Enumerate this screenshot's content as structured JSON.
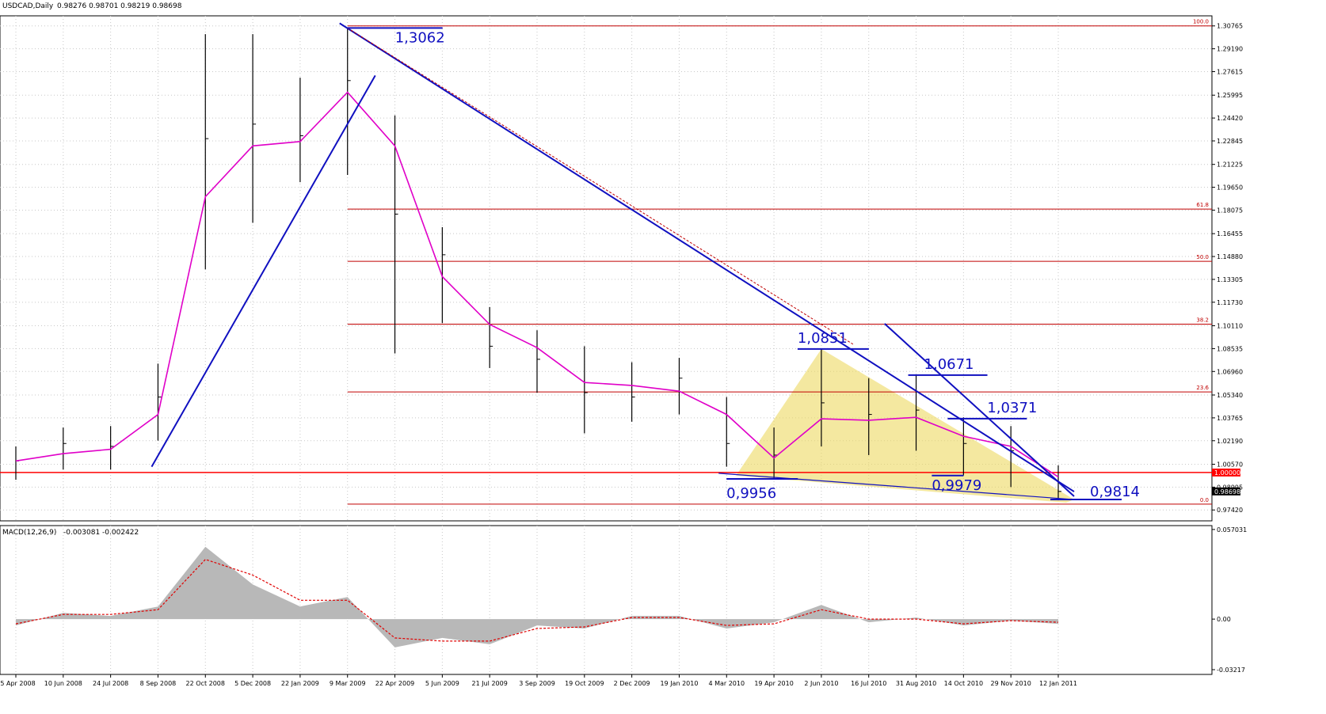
{
  "window": {
    "title": "USDCAD,Daily",
    "ohlc": "0.98276 0.98701 0.98219 0.98698"
  },
  "colors": {
    "background": "#ffffff",
    "grid": "#c8c8c8",
    "candle": "#000000",
    "ma": "#e000c8",
    "trendline": "#1010c0",
    "fibo": "#c00000",
    "triangle": "#ecd860",
    "macd_hist": "#b8b8b8",
    "macd_signal": "#e00000",
    "current_price_box": "#ffffff",
    "parity_box": "#ff0000"
  },
  "chart_data": [
    {
      "type": "line",
      "title": "USDCAD,Daily",
      "symbol": "USDCAD",
      "timeframe": "Daily",
      "ohlc_last": [
        0.98276,
        0.98701,
        0.98219,
        0.98698
      ],
      "ylim": [
        0.9667,
        1.3146
      ],
      "y_ticks": [
        "1.30765",
        "1.29190",
        "1.27615",
        "1.25995",
        "1.24420",
        "1.22845",
        "1.21225",
        "1.19650",
        "1.18075",
        "1.16455",
        "1.14880",
        "1.13305",
        "1.11730",
        "1.10110",
        "1.08535",
        "1.06960",
        "1.05340",
        "1.03765",
        "1.02190",
        "1.00570",
        "0.98995",
        "0.97420"
      ],
      "x_ticks": [
        "25 Apr 2008",
        "10 Jun 2008",
        "24 Jul 2008",
        "8 Sep 2008",
        "22 Oct 2008",
        "5 Dec 2008",
        "22 Jan 2009",
        "9 Mar 2009",
        "22 Apr 2009",
        "5 Jun 2009",
        "21 Jul 2009",
        "3 Sep 2009",
        "19 Oct 2009",
        "2 Dec 2009",
        "19 Jan 2010",
        "4 Mar 2010",
        "19 Apr 2010",
        "2 Jun 2010",
        "16 Jul 2010",
        "31 Aug 2010",
        "14 Oct 2010",
        "29 Nov 2010",
        "12 Jan 2011"
      ],
      "series": [
        {
          "style": "candles",
          "x": [
            "25 Apr 2008",
            "10 Jun 2008",
            "24 Jul 2008",
            "8 Sep 2008",
            "22 Oct 2008",
            "5 Dec 2008",
            "22 Jan 2009",
            "9 Mar 2009",
            "22 Apr 2009",
            "5 Jun 2009",
            "21 Jul 2009",
            "3 Sep 2009",
            "19 Oct 2009",
            "2 Dec 2009",
            "19 Jan 2010",
            "4 Mar 2010",
            "19 Apr 2010",
            "2 Jun 2010",
            "16 Jul 2010",
            "31 Aug 2010",
            "14 Oct 2010",
            "29 Nov 2010",
            "12 Jan 2011"
          ],
          "high": [
            1.018,
            1.031,
            1.032,
            1.075,
            1.302,
            1.302,
            1.272,
            1.306,
            1.246,
            1.169,
            1.114,
            1.098,
            1.087,
            1.076,
            1.079,
            1.052,
            1.031,
            1.085,
            1.065,
            1.067,
            1.038,
            1.032,
            1.005
          ],
          "low": [
            0.995,
            1.002,
            1.002,
            1.022,
            1.14,
            1.172,
            1.2,
            1.205,
            1.082,
            1.103,
            1.072,
            1.055,
            1.027,
            1.035,
            1.04,
            1.004,
            0.996,
            1.018,
            1.012,
            1.015,
            0.998,
            0.99,
            0.981
          ],
          "close": [
            1.008,
            1.02,
            1.018,
            1.052,
            1.23,
            1.24,
            1.232,
            1.27,
            1.178,
            1.15,
            1.087,
            1.078,
            1.055,
            1.052,
            1.065,
            1.02,
            1.012,
            1.048,
            1.04,
            1.043,
            1.02,
            1.015,
            0.987
          ]
        },
        {
          "style": "moving-average",
          "x": [
            "25 Apr 2008",
            "10 Jun 2008",
            "24 Jul 2008",
            "8 Sep 2008",
            "22 Oct 2008",
            "5 Dec 2008",
            "22 Jan 2009",
            "9 Mar 2009",
            "22 Apr 2009",
            "5 Jun 2009",
            "21 Jul 2009",
            "3 Sep 2009",
            "19 Oct 2009",
            "2 Dec 2009",
            "19 Jan 2010",
            "4 Mar 2010",
            "19 Apr 2010",
            "2 Jun 2010",
            "16 Jul 2010",
            "31 Aug 2010",
            "14 Oct 2010",
            "29 Nov 2010",
            "12 Jan 2011"
          ],
          "y": [
            1.008,
            1.013,
            1.016,
            1.04,
            1.19,
            1.225,
            1.228,
            1.262,
            1.225,
            1.135,
            1.102,
            1.086,
            1.062,
            1.06,
            1.056,
            1.04,
            1.01,
            1.037,
            1.036,
            1.038,
            1.025,
            1.018,
            0.997
          ]
        }
      ],
      "annotations": [
        {
          "text": "1,3062",
          "value": 1.3062
        },
        {
          "text": "1,0851",
          "value": 1.0851
        },
        {
          "text": "1,0671",
          "value": 1.0671
        },
        {
          "text": "1,0371",
          "value": 1.0371
        },
        {
          "text": "0,9979",
          "value": 0.9979
        },
        {
          "text": "0,9956",
          "value": 0.9956
        },
        {
          "text": "0,9814",
          "value": 0.9814
        }
      ],
      "fibo_levels": [
        {
          "label": "100.0",
          "value": 1.30765
        },
        {
          "label": "61.8",
          "value": 1.1815
        },
        {
          "label": "50.0",
          "value": 1.1455
        },
        {
          "label": "38.2",
          "value": 1.1022
        },
        {
          "label": "23.6",
          "value": 1.0555
        },
        {
          "label": "0.0",
          "value": 0.9782
        }
      ],
      "horizontal_line": {
        "label": "1.00000",
        "value": 1.0
      },
      "current_price": {
        "label": "0.98698",
        "value": 0.98698
      },
      "grid": true
    },
    {
      "type": "area",
      "title": "MACD(12,26,9) -0.003081 -0.002422",
      "indicator": "MACD(12,26,9)",
      "values_text": "-0.003081 -0.002422",
      "ylim": [
        -0.0352,
        0.0595
      ],
      "y_ticks": [
        "0.057031",
        "0.00",
        "-0.03217"
      ],
      "x": [
        "25 Apr 2008",
        "10 Jun 2008",
        "24 Jul 2008",
        "8 Sep 2008",
        "22 Oct 2008",
        "5 Dec 2008",
        "22 Jan 2009",
        "9 Mar 2009",
        "22 Apr 2009",
        "5 Jun 2009",
        "21 Jul 2009",
        "3 Sep 2009",
        "19 Oct 2009",
        "2 Dec 2009",
        "19 Jan 2010",
        "4 Mar 2010",
        "19 Apr 2010",
        "2 Jun 2010",
        "16 Jul 2010",
        "31 Aug 2010",
        "14 Oct 2010",
        "29 Nov 2010",
        "12 Jan 2011"
      ],
      "series": [
        {
          "name": "MACD",
          "style": "histogram",
          "values": [
            -0.004,
            0.004,
            0.002,
            0.008,
            0.046,
            0.022,
            0.008,
            0.014,
            -0.018,
            -0.012,
            -0.016,
            -0.004,
            -0.006,
            0.002,
            0.002,
            -0.006,
            -0.002,
            0.009,
            -0.002,
            0.001,
            -0.004,
            -0.001,
            -0.003
          ]
        },
        {
          "name": "Signal",
          "style": "dashed-line",
          "values": [
            -0.003,
            0.003,
            0.003,
            0.006,
            0.038,
            0.028,
            0.012,
            0.012,
            -0.012,
            -0.014,
            -0.014,
            -0.006,
            -0.005,
            0.001,
            0.001,
            -0.004,
            -0.003,
            0.006,
            0.0,
            0.0,
            -0.003,
            -0.001,
            -0.002
          ]
        }
      ],
      "grid": true
    }
  ]
}
